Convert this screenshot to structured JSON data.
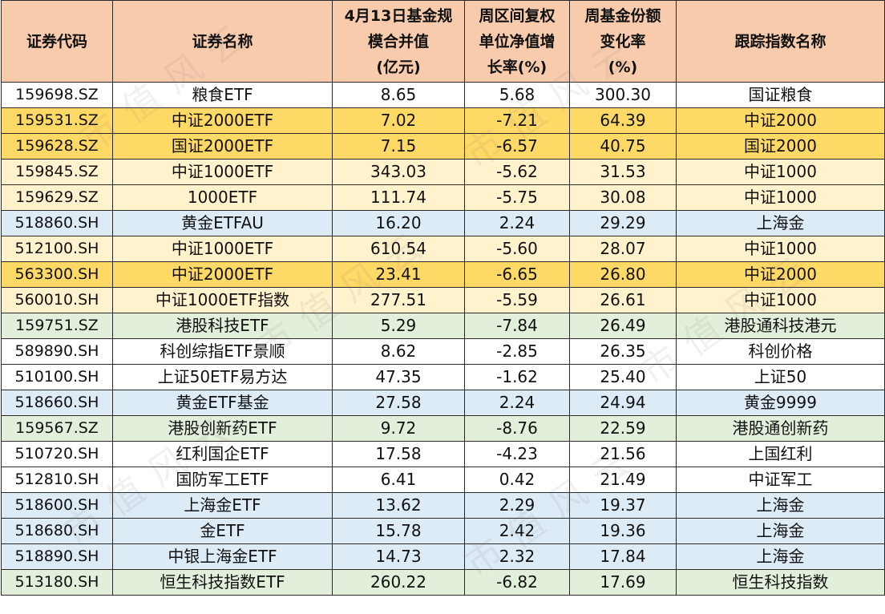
{
  "headers": [
    "证券代码",
    "证券名称",
    "4月13日基金规模合并值(亿元)",
    "周区间复权单位净值增长率(%)",
    "周基金份额变化率(%)",
    "跟踪指数名称"
  ],
  "header_lines": [
    [
      "证券代码"
    ],
    [
      "证券名称"
    ],
    [
      "4月13日基金规",
      "模合并值",
      "(亿元)"
    ],
    [
      "周区间复权",
      "单位净值增",
      "长率(%)"
    ],
    [
      "周基金份额",
      "变化率",
      "(%)"
    ],
    [
      "跟踪指数名称"
    ]
  ],
  "row_colors": {
    "white": "#ffffff",
    "gold": "#ffd966",
    "cream": "#fff2cc",
    "blue": "#ddebf7",
    "green": "#e2efda",
    "header": "#f8cbad"
  },
  "rows": [
    {
      "code": "159698.SZ",
      "name": "粮食ETF",
      "scale": "8.65",
      "nav_growth": "5.68",
      "share_change": "300.30",
      "index": "国证粮食",
      "color": "white"
    },
    {
      "code": "159531.SZ",
      "name": "中证2000ETF",
      "scale": "7.02",
      "nav_growth": "-7.21",
      "share_change": "64.39",
      "index": "中证2000",
      "color": "gold"
    },
    {
      "code": "159628.SZ",
      "name": "国证2000ETF",
      "scale": "7.15",
      "nav_growth": "-6.57",
      "share_change": "40.75",
      "index": "国证2000",
      "color": "gold"
    },
    {
      "code": "159845.SZ",
      "name": "中证1000ETF",
      "scale": "343.03",
      "nav_growth": "-5.62",
      "share_change": "31.53",
      "index": "中证1000",
      "color": "cream"
    },
    {
      "code": "159629.SZ",
      "name": "1000ETF",
      "scale": "111.74",
      "nav_growth": "-5.75",
      "share_change": "30.08",
      "index": "中证1000",
      "color": "cream"
    },
    {
      "code": "518860.SH",
      "name": "黄金ETFAU",
      "scale": "16.20",
      "nav_growth": "2.24",
      "share_change": "29.29",
      "index": "上海金",
      "color": "blue"
    },
    {
      "code": "512100.SH",
      "name": "中证1000ETF",
      "scale": "610.54",
      "nav_growth": "-5.60",
      "share_change": "28.07",
      "index": "中证1000",
      "color": "cream"
    },
    {
      "code": "563300.SH",
      "name": "中证2000ETF",
      "scale": "23.41",
      "nav_growth": "-6.65",
      "share_change": "26.80",
      "index": "中证2000",
      "color": "gold"
    },
    {
      "code": "560010.SH",
      "name": "中证1000ETF指数",
      "scale": "277.51",
      "nav_growth": "-5.59",
      "share_change": "26.61",
      "index": "中证1000",
      "color": "cream"
    },
    {
      "code": "159751.SZ",
      "name": "港股科技ETF",
      "scale": "5.29",
      "nav_growth": "-7.84",
      "share_change": "26.49",
      "index": "港股通科技港元",
      "color": "green"
    },
    {
      "code": "589890.SH",
      "name": "科创综指ETF景顺",
      "scale": "8.62",
      "nav_growth": "-2.85",
      "share_change": "26.35",
      "index": "科创价格",
      "color": "white"
    },
    {
      "code": "510100.SH",
      "name": "上证50ETF易方达",
      "scale": "47.35",
      "nav_growth": "-1.62",
      "share_change": "25.40",
      "index": "上证50",
      "color": "white"
    },
    {
      "code": "518660.SH",
      "name": "黄金ETF基金",
      "scale": "27.58",
      "nav_growth": "2.24",
      "share_change": "24.94",
      "index": "黄金9999",
      "color": "blue"
    },
    {
      "code": "159567.SZ",
      "name": "港股创新药ETF",
      "scale": "9.72",
      "nav_growth": "-8.76",
      "share_change": "22.59",
      "index": "港股通创新药",
      "color": "green"
    },
    {
      "code": "510720.SH",
      "name": "红利国企ETF",
      "scale": "17.58",
      "nav_growth": "-4.23",
      "share_change": "21.56",
      "index": "上国红利",
      "color": "white"
    },
    {
      "code": "512810.SH",
      "name": "国防军工ETF",
      "scale": "6.41",
      "nav_growth": "0.42",
      "share_change": "21.49",
      "index": "中证军工",
      "color": "white"
    },
    {
      "code": "518600.SH",
      "name": "上海金ETF",
      "scale": "13.62",
      "nav_growth": "2.29",
      "share_change": "19.37",
      "index": "上海金",
      "color": "blue"
    },
    {
      "code": "518680.SH",
      "name": "金ETF",
      "scale": "15.78",
      "nav_growth": "2.42",
      "share_change": "19.36",
      "index": "上海金",
      "color": "blue"
    },
    {
      "code": "518890.SH",
      "name": "中银上海金ETF",
      "scale": "14.73",
      "nav_growth": "2.32",
      "share_change": "17.84",
      "index": "上海金",
      "color": "blue"
    },
    {
      "code": "513180.SH",
      "name": "恒生科技指数ETF",
      "scale": "260.22",
      "nav_growth": "-6.82",
      "share_change": "17.69",
      "index": "恒生科技指数",
      "color": "green"
    }
  ],
  "watermark": "市值风云"
}
